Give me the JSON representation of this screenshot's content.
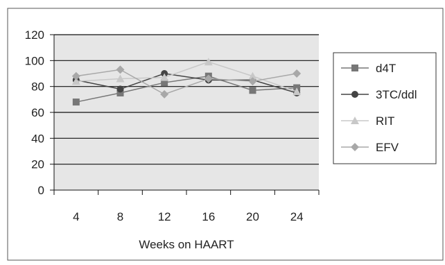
{
  "chart_data": {
    "type": "line",
    "title": "",
    "xlabel": "Weeks on HAART",
    "ylabel": "",
    "categories": [
      "4",
      "8",
      "12",
      "16",
      "20",
      "24"
    ],
    "ylim": [
      0,
      120
    ],
    "yticks": [
      "0",
      "20",
      "40",
      "60",
      "80",
      "100",
      "120"
    ],
    "grid": true,
    "legend_position": "right",
    "series": [
      {
        "name": "d4T",
        "marker": "square",
        "color": "#777777",
        "values": [
          68,
          75,
          83,
          88,
          77,
          79
        ]
      },
      {
        "name": "3TC/ddl",
        "marker": "circle",
        "color": "#444444",
        "values": [
          85,
          78,
          90,
          85,
          85,
          75
        ]
      },
      {
        "name": "RIT",
        "marker": "triangle",
        "color": "#c8c8c8",
        "values": [
          84,
          86,
          87,
          99,
          88,
          76
        ]
      },
      {
        "name": "EFV",
        "marker": "diamond",
        "color": "#a8a8a8",
        "values": [
          88,
          93,
          74,
          86,
          84,
          90
        ]
      }
    ]
  }
}
